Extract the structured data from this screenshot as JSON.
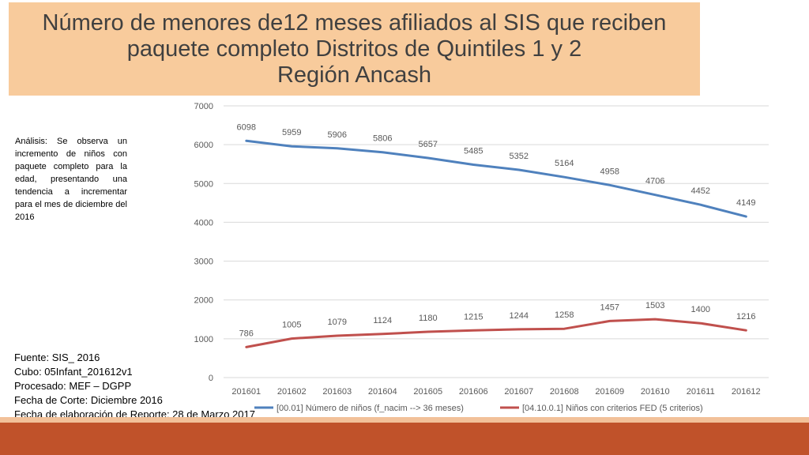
{
  "title": {
    "line1": "Número de menores de12 meses afiliados al SIS que reciben",
    "line2": "paquete completo Distritos de Quintiles 1 y 2",
    "line3": "Región Ancash"
  },
  "analysis": "Análisis: Se observa un incremento de niños con paquete completo para la edad, presentando una tendencia a incrementar para el mes de diciembre del 2016",
  "source": {
    "line1": "Fuente: SIS_  2016",
    "line2": "Cubo: 05Infant_201612v1",
    "line3": "Procesado: MEF – DGPP",
    "line4": "Fecha de Corte: Diciembre 2016",
    "line5": "Fecha de elaboración de Reporte: 28 de Marzo 2017"
  },
  "colors": {
    "series1": "#4f81bd",
    "series2": "#c0504d",
    "grid": "#d9d9d9",
    "axis_text": "#595959",
    "title_bg": "#f8cb9c",
    "footer_bar": "#c0522a"
  },
  "chart_data": {
    "type": "line",
    "categories": [
      "201601",
      "201602",
      "201603",
      "201604",
      "201605",
      "201606",
      "201607",
      "201608",
      "201609",
      "201610",
      "201611",
      "201612"
    ],
    "ylim": [
      0,
      7000
    ],
    "yticks": [
      "0",
      "1000",
      "2000",
      "3000",
      "4000",
      "5000",
      "6000",
      "7000"
    ],
    "grid": true,
    "legend_position": "bottom",
    "series": [
      {
        "name": "[00.01] Número de niños (f_nacim --> 36 meses)",
        "values": [
          6098,
          5959,
          5906,
          5806,
          5657,
          5485,
          5352,
          5164,
          4958,
          4706,
          4452,
          4149
        ]
      },
      {
        "name": "[04.10.0.1] Niños con criterios FED (5 criterios)",
        "values": [
          786,
          1005,
          1079,
          1124,
          1180,
          1215,
          1244,
          1258,
          1457,
          1503,
          1400,
          1216
        ]
      }
    ]
  }
}
